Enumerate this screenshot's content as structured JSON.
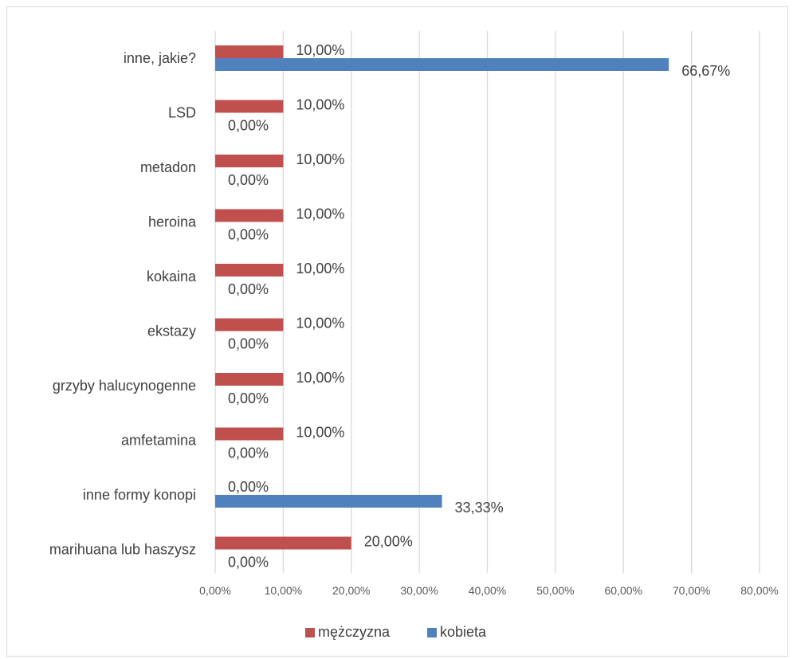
{
  "chart_data": {
    "type": "bar",
    "orientation": "horizontal",
    "categories": [
      "inne, jakie?",
      "LSD",
      "metadon",
      "heroina",
      "kokaina",
      "ekstazy",
      "grzyby halucynogenne",
      "amfetamina",
      "inne formy konopi",
      "marihuana lub haszysz"
    ],
    "series": [
      {
        "name": "mężczyzna",
        "color": "#c0504d",
        "values": [
          10,
          10,
          10,
          10,
          10,
          10,
          10,
          10,
          0,
          20
        ],
        "labels": [
          "10,00%",
          "10,00%",
          "10,00%",
          "10,00%",
          "10,00%",
          "10,00%",
          "10,00%",
          "10,00%",
          "0,00%",
          "20,00%"
        ]
      },
      {
        "name": "kobieta",
        "color": "#4f81bd",
        "values": [
          66.67,
          0,
          0,
          0,
          0,
          0,
          0,
          0,
          33.33,
          0
        ],
        "labels": [
          "66,67%",
          "0,00%",
          "0,00%",
          "0,00%",
          "0,00%",
          "0,00%",
          "0,00%",
          "0,00%",
          "33,33%",
          "0,00%"
        ]
      }
    ],
    "xlim": [
      0,
      80
    ],
    "x_ticks": [
      0,
      10,
      20,
      30,
      40,
      50,
      60,
      70,
      80
    ],
    "x_tick_labels": [
      "0,00%",
      "10,00%",
      "20,00%",
      "30,00%",
      "40,00%",
      "50,00%",
      "60,00%",
      "70,00%",
      "80,00%"
    ],
    "grid": true,
    "legend_position": "bottom",
    "title": "",
    "xlabel": "",
    "ylabel": ""
  }
}
